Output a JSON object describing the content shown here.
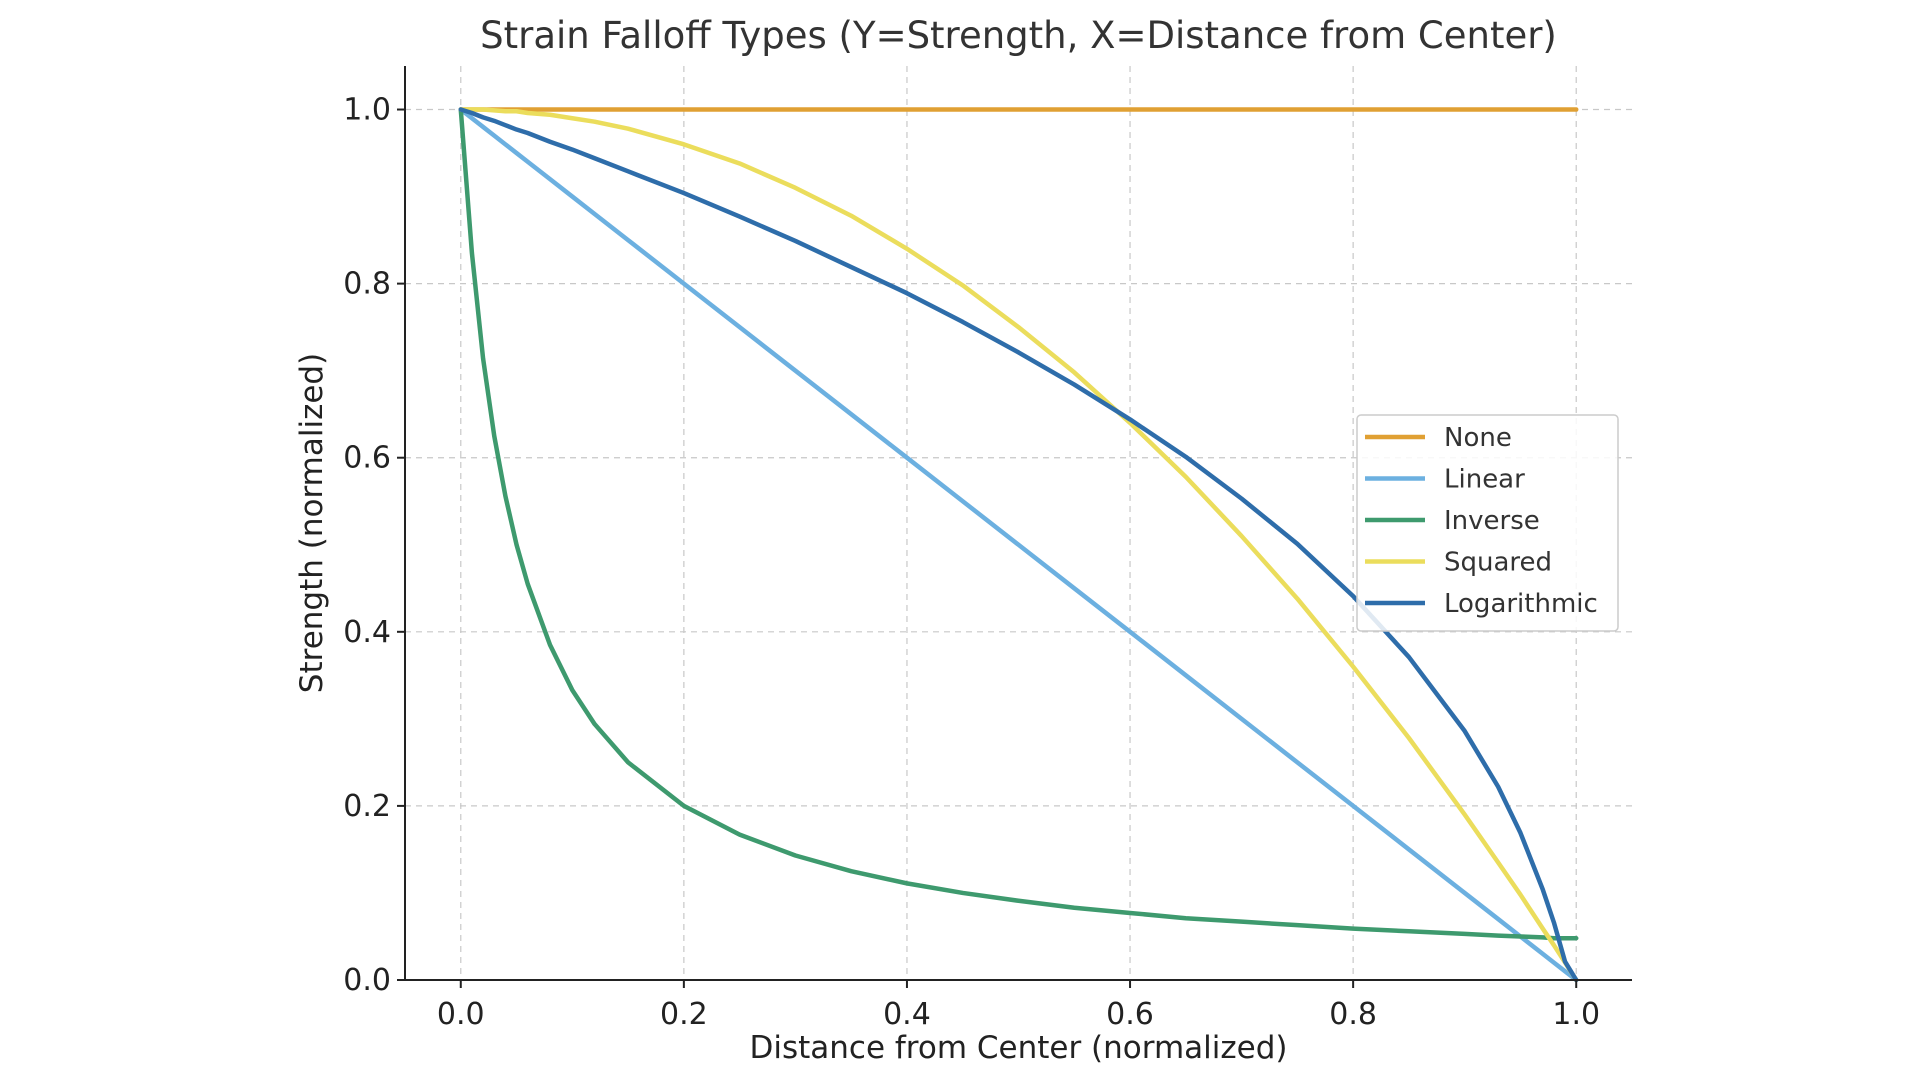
{
  "chart_data": {
    "type": "line",
    "title": "Strain Falloff Types (Y=Strength, X=Distance from Center)",
    "xlabel": "Distance from Center (normalized)",
    "ylabel": "Strength (normalized)",
    "xlim": [
      -0.05,
      1.05
    ],
    "ylim": [
      0.0,
      1.05
    ],
    "x_ticks": [
      0.0,
      0.2,
      0.4,
      0.6,
      0.8,
      1.0
    ],
    "x_tick_labels": [
      "0.0",
      "0.2",
      "0.4",
      "0.6",
      "0.8",
      "1.0"
    ],
    "y_ticks": [
      0.0,
      0.2,
      0.4,
      0.6,
      0.8,
      1.0
    ],
    "y_tick_labels": [
      "0.0",
      "0.2",
      "0.4",
      "0.6",
      "0.8",
      "1.0"
    ],
    "grid": true,
    "legend_position": "center-right",
    "x": [
      0.0,
      0.01,
      0.02,
      0.03,
      0.04,
      0.05,
      0.06,
      0.08,
      0.1,
      0.12,
      0.15,
      0.2,
      0.25,
      0.3,
      0.35,
      0.4,
      0.45,
      0.5,
      0.55,
      0.6,
      0.65,
      0.7,
      0.75,
      0.8,
      0.85,
      0.9,
      0.93,
      0.95,
      0.97,
      0.98,
      0.99,
      1.0
    ],
    "series": [
      {
        "name": "None",
        "color": "#E0A033",
        "values": [
          1.0,
          1.0,
          1.0,
          1.0,
          1.0,
          1.0,
          1.0,
          1.0,
          1.0,
          1.0,
          1.0,
          1.0,
          1.0,
          1.0,
          1.0,
          1.0,
          1.0,
          1.0,
          1.0,
          1.0,
          1.0,
          1.0,
          1.0,
          1.0,
          1.0,
          1.0,
          1.0,
          1.0,
          1.0,
          1.0,
          1.0,
          1.0
        ]
      },
      {
        "name": "Linear",
        "color": "#6CB0E0",
        "values": [
          1.0,
          0.99,
          0.98,
          0.97,
          0.96,
          0.95,
          0.94,
          0.92,
          0.9,
          0.88,
          0.85,
          0.8,
          0.75,
          0.7,
          0.65,
          0.6,
          0.55,
          0.5,
          0.45,
          0.4,
          0.35,
          0.3,
          0.25,
          0.2,
          0.15,
          0.1,
          0.07,
          0.05,
          0.03,
          0.02,
          0.01,
          0.0
        ]
      },
      {
        "name": "Inverse",
        "color": "#3E9A6E",
        "values": [
          1.0,
          0.835,
          0.714,
          0.625,
          0.556,
          0.5,
          0.455,
          0.385,
          0.333,
          0.294,
          0.25,
          0.2,
          0.167,
          0.143,
          0.125,
          0.111,
          0.1,
          0.091,
          0.083,
          0.077,
          0.071,
          0.067,
          0.063,
          0.059,
          0.056,
          0.053,
          0.051,
          0.05,
          0.049,
          0.048,
          0.048,
          0.048
        ]
      },
      {
        "name": "Squared",
        "color": "#EBDD5C",
        "values": [
          1.0,
          1.0,
          1.0,
          0.999,
          0.998,
          0.998,
          0.996,
          0.994,
          0.99,
          0.986,
          0.978,
          0.96,
          0.938,
          0.91,
          0.878,
          0.84,
          0.798,
          0.75,
          0.698,
          0.64,
          0.578,
          0.51,
          0.438,
          0.36,
          0.278,
          0.19,
          0.135,
          0.098,
          0.059,
          0.04,
          0.02,
          0.0
        ]
      },
      {
        "name": "Logarithmic",
        "color": "#2E6DAA",
        "values": [
          1.0,
          0.996,
          0.991,
          0.987,
          0.982,
          0.977,
          0.973,
          0.963,
          0.954,
          0.944,
          0.929,
          0.904,
          0.877,
          0.849,
          0.819,
          0.789,
          0.756,
          0.721,
          0.684,
          0.644,
          0.601,
          0.553,
          0.501,
          0.441,
          0.371,
          0.286,
          0.222,
          0.169,
          0.104,
          0.066,
          0.021,
          0.0
        ]
      }
    ]
  }
}
